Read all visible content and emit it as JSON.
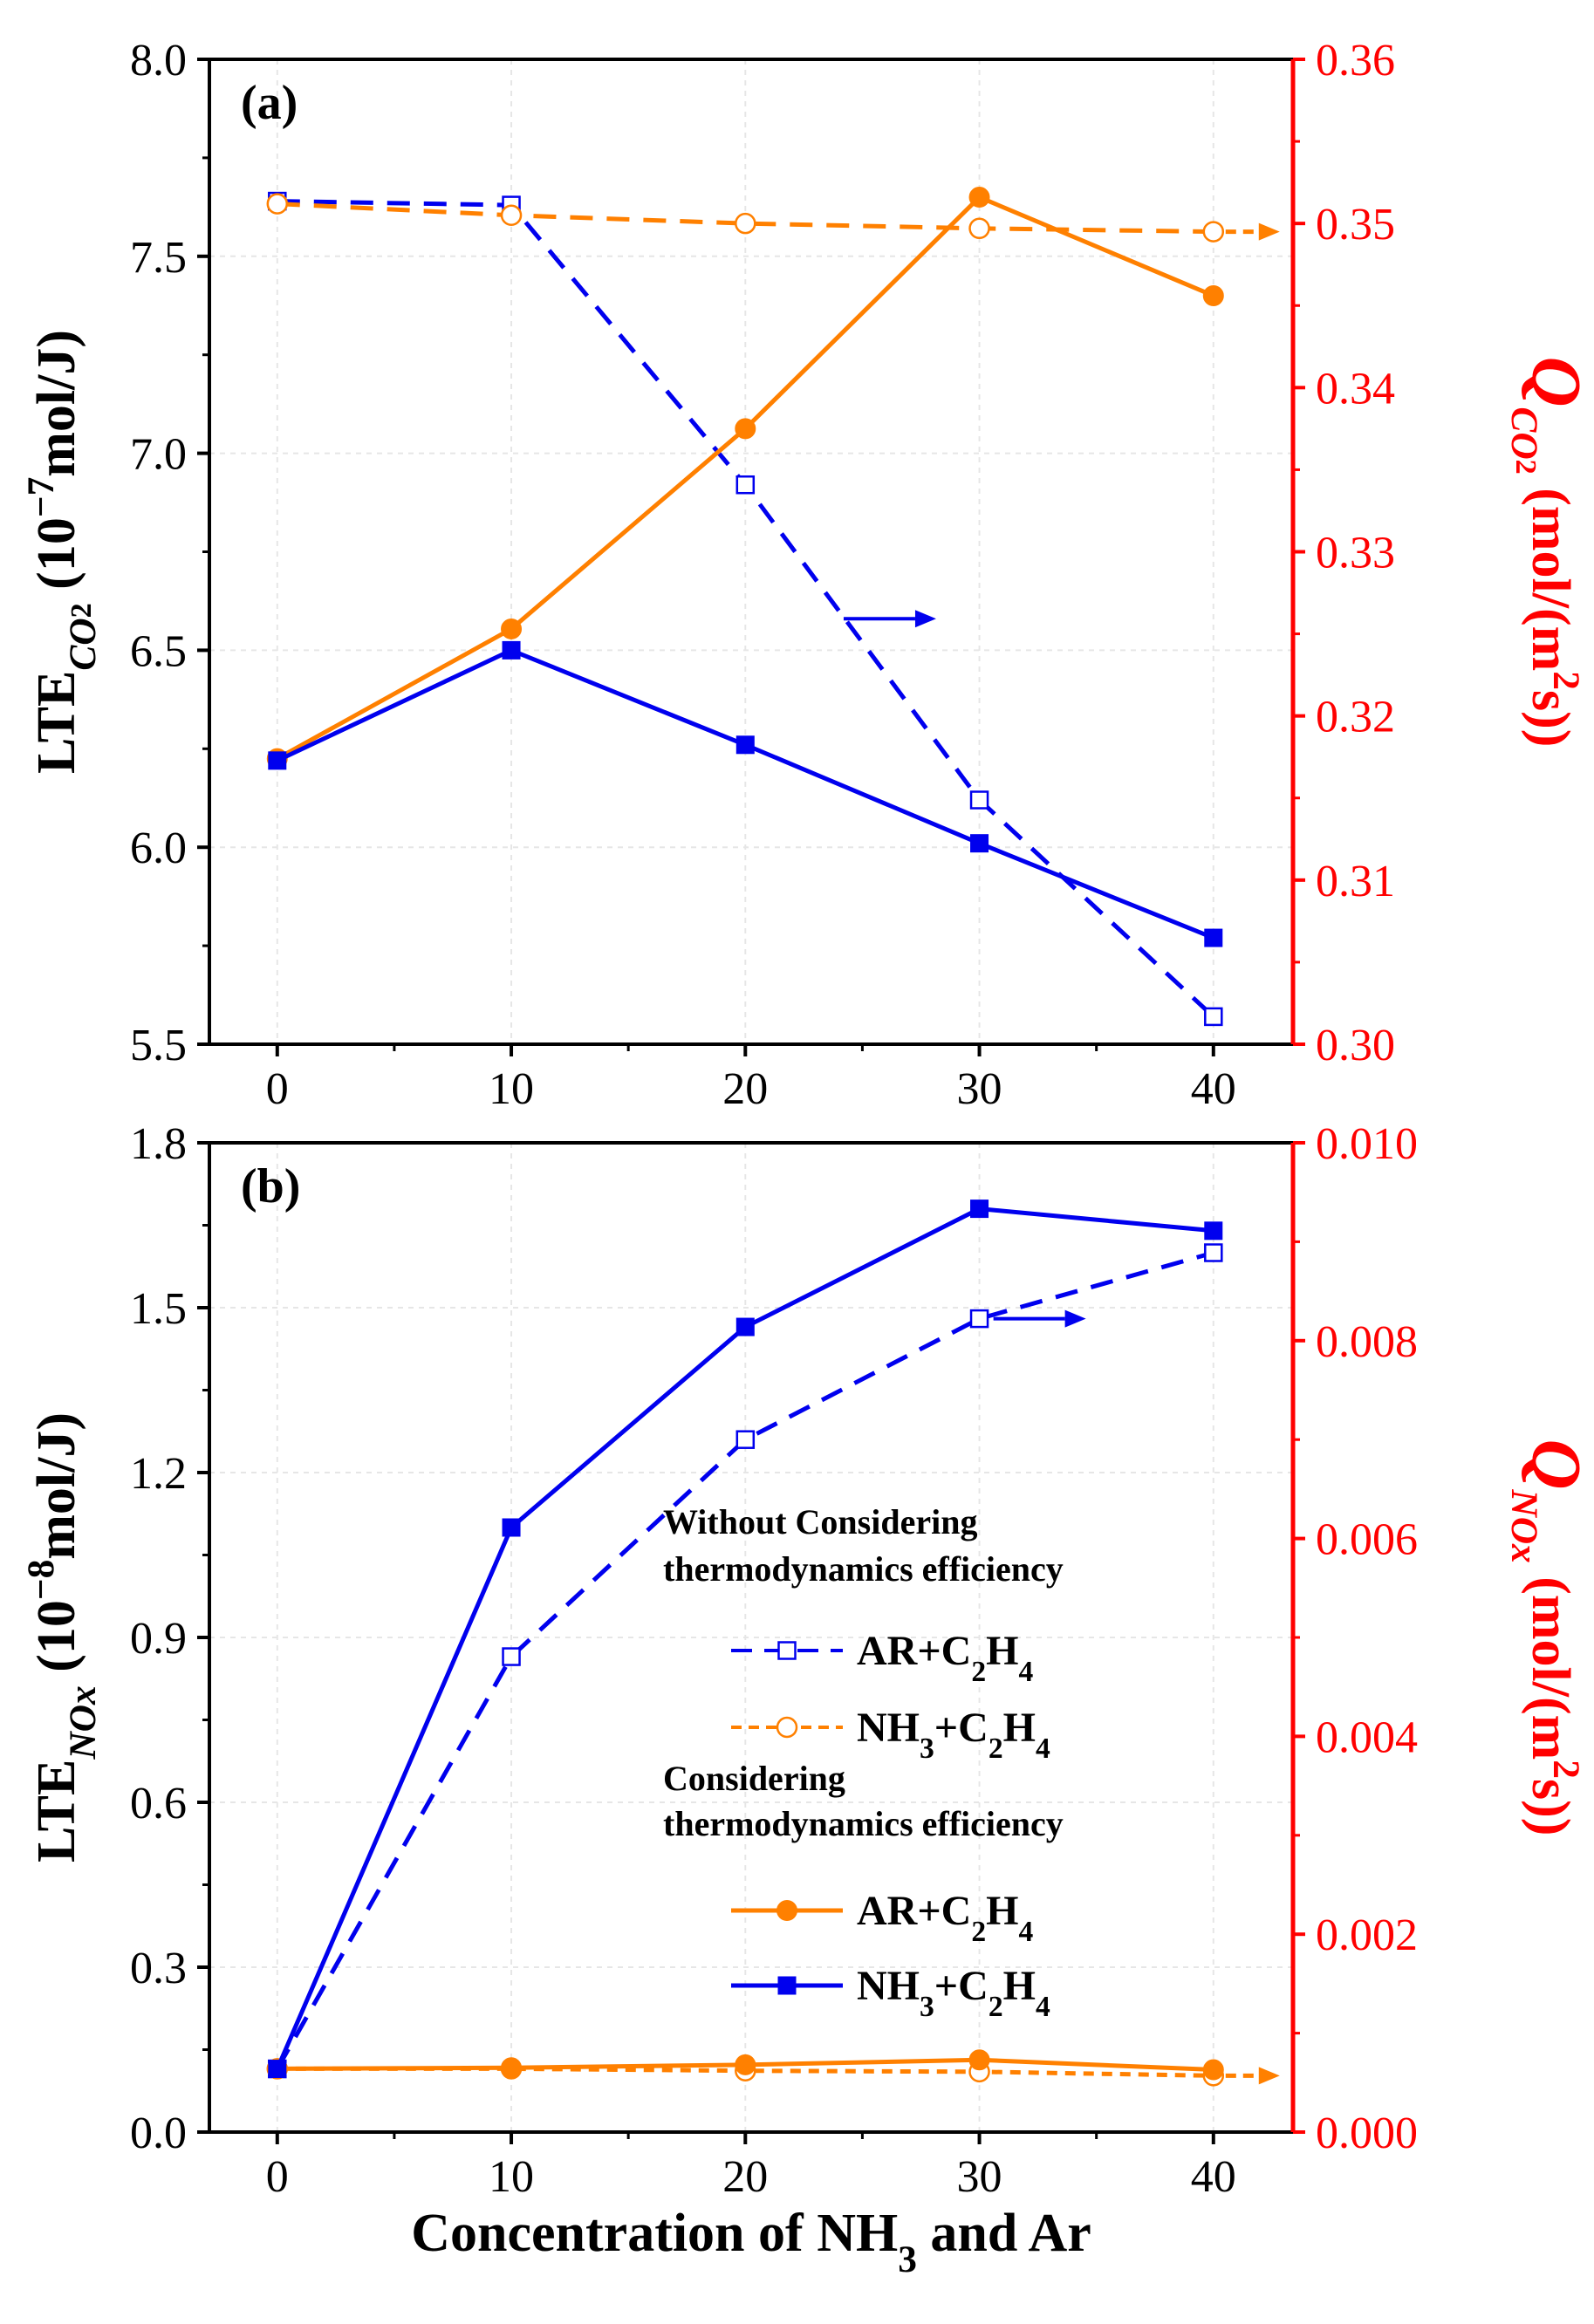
{
  "colors": {
    "blue": "#0000ee",
    "orange": "#ff8000",
    "red": "#ff0000",
    "axis": "#000000"
  },
  "xaxis": {
    "label_parts": [
      "Concentration of NH",
      "3",
      " and Ar"
    ],
    "ticks": [
      0,
      10,
      20,
      30,
      40
    ],
    "tick_labels": [
      "0",
      "10",
      "20",
      "30",
      "40"
    ]
  },
  "legend": {
    "group1_title": [
      "Without Considering",
      "thermodynamics efficiency"
    ],
    "group2_title": [
      "Considering",
      "thermodynamics efficiency"
    ],
    "items": [
      {
        "parts": [
          "AR+C",
          "2",
          "H",
          "4"
        ],
        "color": "blue",
        "dash": true,
        "marker": "square-open"
      },
      {
        "parts": [
          "NH",
          "3",
          "+C",
          "2",
          "H",
          "4"
        ],
        "color": "orange",
        "dash": true,
        "marker": "circle-open"
      },
      {
        "parts": [
          "AR+C",
          "2",
          "H",
          "4"
        ],
        "color": "orange",
        "dash": false,
        "marker": "circle-filled"
      },
      {
        "parts": [
          "NH",
          "3",
          "+C",
          "2",
          "H",
          "4"
        ],
        "color": "blue",
        "dash": false,
        "marker": "square-filled"
      }
    ]
  },
  "chart_data": [
    {
      "type": "line",
      "panel_label": "(a)",
      "ylabel_left_parts": [
        "LTE",
        "CO",
        "2",
        " (10",
        "−7",
        "mol/J)"
      ],
      "ylabel_right_parts": [
        "Q",
        "CO",
        "2",
        " (mol/(m",
        "2",
        "s))"
      ],
      "ylim_left": [
        5.5,
        8.0
      ],
      "yticks_left": [
        5.5,
        6.0,
        6.5,
        7.0,
        7.5,
        8.0
      ],
      "ytick_labels_left": [
        "5.5",
        "6.0",
        "6.5",
        "7.0",
        "7.5",
        "8.0"
      ],
      "ylim_right": [
        0.3,
        0.36
      ],
      "yticks_right": [
        0.3,
        0.31,
        0.32,
        0.33,
        0.34,
        0.35,
        0.36
      ],
      "ytick_labels_right": [
        "0.30",
        "0.31",
        "0.32",
        "0.33",
        "0.34",
        "0.35",
        "0.36"
      ],
      "x": [
        0,
        10,
        20,
        30,
        40
      ],
      "series": [
        {
          "name": "AR+C2H4 (without thermodynamics efficiency)",
          "axis": "left",
          "color": "blue",
          "dash": true,
          "marker": "square-open",
          "values": [
            7.64,
            7.63,
            6.92,
            6.12,
            5.57
          ]
        },
        {
          "name": "NH3+C2H4 (without thermodynamics efficiency)",
          "axis": "right",
          "color": "orange",
          "dash": true,
          "marker": "circle-open",
          "values": [
            0.3512,
            0.3505,
            0.35,
            0.3497,
            0.3495
          ]
        },
        {
          "name": "AR+C2H4 (considering thermodynamics efficiency)",
          "axis": "right",
          "color": "orange",
          "dash": false,
          "marker": "circle-filled",
          "values": [
            0.3174,
            0.3253,
            0.3375,
            0.3516,
            0.3456
          ]
        },
        {
          "name": "NH3+C2H4 (considering thermodynamics efficiency)",
          "axis": "left",
          "color": "blue",
          "dash": false,
          "marker": "square-filled",
          "values": [
            6.22,
            6.5,
            6.26,
            6.01,
            5.77
          ]
        }
      ]
    },
    {
      "type": "line",
      "panel_label": "(b)",
      "ylabel_left_parts": [
        "LTE",
        "NOx",
        "",
        "  (10",
        "−8",
        "mol/J)"
      ],
      "ylabel_right_parts": [
        "Q",
        "NOx",
        "",
        " (mol/(m",
        "2",
        "s))"
      ],
      "ylim_left": [
        0.0,
        1.8
      ],
      "yticks_left": [
        0.0,
        0.3,
        0.6,
        0.9,
        1.2,
        1.5,
        1.8
      ],
      "ytick_labels_left": [
        "0.0",
        "0.3",
        "0.6",
        "0.9",
        "1.2",
        "1.5",
        "1.8"
      ],
      "ylim_right": [
        0.0,
        0.01
      ],
      "yticks_right": [
        0.0,
        0.002,
        0.004,
        0.006,
        0.008,
        0.01
      ],
      "ytick_labels_right": [
        "0.000",
        "0.002",
        "0.004",
        "0.006",
        "0.008",
        "0.010"
      ],
      "x": [
        0,
        10,
        20,
        30,
        40
      ],
      "series": [
        {
          "name": "AR+C2H4 (without thermodynamics efficiency)",
          "axis": "left",
          "color": "blue",
          "dash": true,
          "marker": "square-open",
          "values": [
            0.115,
            0.865,
            1.26,
            1.48,
            1.6
          ]
        },
        {
          "name": "NH3+C2H4 (without thermodynamics efficiency)",
          "axis": "right",
          "color": "orange",
          "dash": true,
          "marker": "circle-open",
          "values": [
            0.00064,
            0.00064,
            0.00062,
            0.00061,
            0.00057
          ]
        },
        {
          "name": "AR+C2H4 (considering thermodynamics efficiency)",
          "axis": "right",
          "color": "orange",
          "dash": false,
          "marker": "circle-filled",
          "values": [
            0.00064,
            0.00065,
            0.00068,
            0.00073,
            0.00063
          ]
        },
        {
          "name": "NH3+C2H4 (considering thermodynamics efficiency)",
          "axis": "left",
          "color": "blue",
          "dash": false,
          "marker": "square-filled",
          "values": [
            0.115,
            1.1,
            1.465,
            1.68,
            1.64
          ]
        }
      ]
    }
  ]
}
